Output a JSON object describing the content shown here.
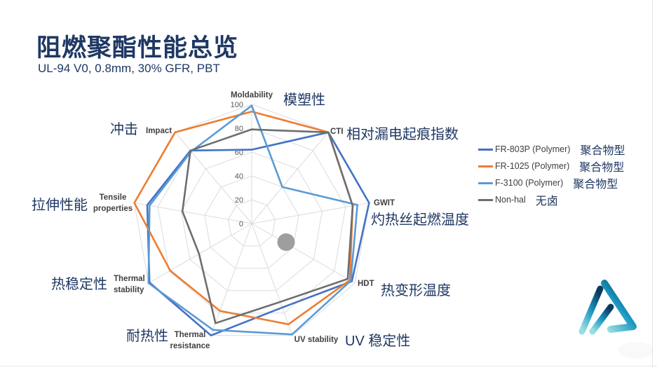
{
  "header": {
    "title": "阻燃聚酯性能总览",
    "subtitle": "UL-94 V0, 0.8mm, 30% GFR, PBT"
  },
  "chart_data": {
    "type": "radar",
    "axis": {
      "min": 0,
      "max": 100,
      "ticks": [
        0,
        20,
        40,
        60,
        80,
        100
      ],
      "grid": true
    },
    "categories": [
      {
        "en": "Moldability",
        "zh": "模塑性"
      },
      {
        "en": "CTI",
        "zh": "相对漏电起痕指数"
      },
      {
        "en": "GWIT",
        "zh": "灼热丝起燃温度"
      },
      {
        "en": "HDT",
        "zh": "热变形温度"
      },
      {
        "en": "UV stability",
        "zh": "UV 稳定性"
      },
      {
        "en": "Thermal resistance",
        "zh": "耐热性"
      },
      {
        "en": "Thermal stability",
        "zh": "热稳定性"
      },
      {
        "en": "Tensile properties",
        "zh": "拉伸性能"
      },
      {
        "en": "Impact",
        "zh": "冲击"
      }
    ],
    "series": [
      {
        "name": "FR-803P (Polymer)",
        "color": "#4472C4",
        "values": [
          62,
          100,
          100,
          97,
          75,
          100,
          99,
          89,
          80
        ]
      },
      {
        "name": "FR-1025 (Polymer)",
        "color": "#ED7D31",
        "values": [
          94,
          100,
          86,
          95,
          90,
          78,
          79,
          100,
          100
        ]
      },
      {
        "name": "F-3100 (Polymer)",
        "color": "#5B9BD5",
        "values": [
          99,
          40,
          90,
          96,
          99,
          95,
          100,
          87,
          79
        ]
      },
      {
        "name": "Non-hal",
        "color": "#6E6E6E",
        "values": [
          79,
          100,
          86,
          93,
          70,
          89,
          51,
          59,
          80
        ]
      }
    ],
    "legend_position": "right"
  },
  "legend": [
    {
      "en": "FR-803P (Polymer)",
      "zh": "聚合物型",
      "color": "#4472C4"
    },
    {
      "en": "FR-1025 (Polymer)",
      "zh": "聚合物型",
      "color": "#ED7D31"
    },
    {
      "en": "F-3100 (Polymer)",
      "zh": "聚合物型",
      "color": "#5B9BD5"
    },
    {
      "en": "Non-hal",
      "zh": "无卤",
      "color": "#6E6E6E"
    }
  ],
  "decorations": {
    "dot_color": "#9E9E9E",
    "grid_color": "#DBDBDB",
    "tick_color": "#595959",
    "axis_label_color": "#404040",
    "cn_label_color": "#1F3864"
  }
}
